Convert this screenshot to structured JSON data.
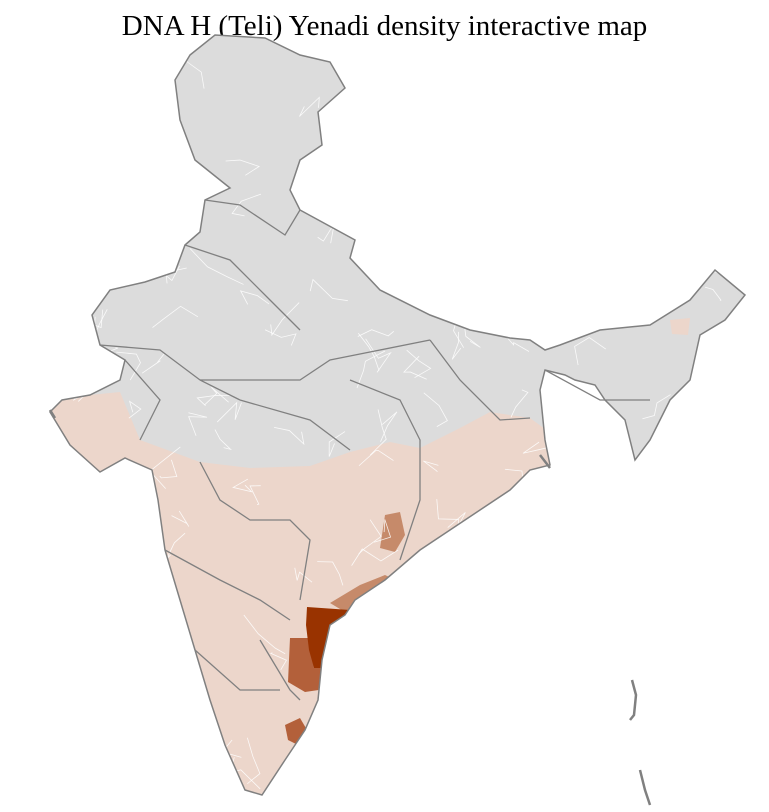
{
  "title": "DNA H (Teli) Yenadi density interactive map",
  "colors": {
    "no_data": "#dcdcdc",
    "low": "#ecd6cb",
    "medium": "#c68a6a",
    "high": "#b3603a",
    "highest": "#993300",
    "district_border": "#ffffff",
    "state_border": "#808080"
  }
}
